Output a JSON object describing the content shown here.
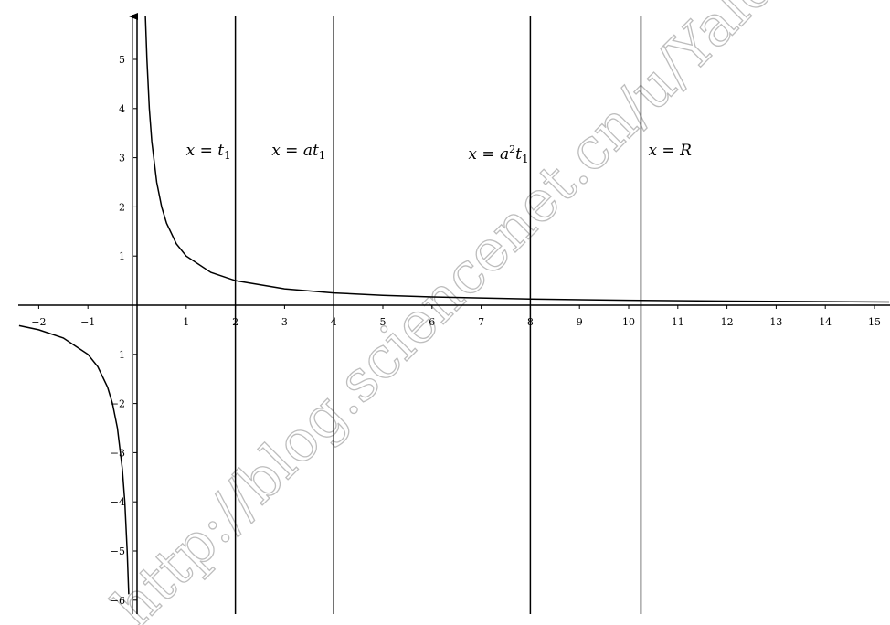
{
  "chart_data": {
    "type": "line",
    "title": "",
    "xlabel": "",
    "ylabel": "",
    "xlim": [
      -2.4,
      15.3
    ],
    "ylim": [
      -6.2,
      5.9
    ],
    "grid": false,
    "x_ticks": [
      -2,
      -1,
      1,
      2,
      3,
      4,
      5,
      6,
      7,
      8,
      9,
      10,
      11,
      12,
      13,
      14,
      15
    ],
    "y_ticks": [
      -6,
      -5,
      -4,
      -3,
      -2,
      -1,
      1,
      2,
      3,
      4,
      5
    ],
    "series": [
      {
        "function": "1/x",
        "color": "#000000",
        "x": [
          -2.4,
          -2,
          -1.5,
          -1,
          -0.8,
          -0.6,
          -0.5,
          -0.4,
          -0.3,
          -0.25,
          -0.2,
          -0.17,
          0.17,
          0.2,
          0.25,
          0.3,
          0.4,
          0.5,
          0.6,
          0.8,
          1,
          1.5,
          2,
          3,
          4,
          5,
          6,
          8,
          10,
          12,
          15.3
        ],
        "y": [
          -0.417,
          -0.5,
          -0.667,
          -1,
          -1.25,
          -1.667,
          -2,
          -2.5,
          -3.333,
          -4,
          -5,
          -5.88,
          5.88,
          5,
          4,
          3.333,
          2.5,
          2,
          1.667,
          1.25,
          1,
          0.667,
          0.5,
          0.333,
          0.25,
          0.2,
          0.167,
          0.125,
          0.1,
          0.083,
          0.065
        ]
      }
    ],
    "vertical_lines": [
      {
        "x": 2,
        "label": "x = t",
        "label_sub": "1",
        "label_sup": ""
      },
      {
        "x": 4,
        "label": "x = at",
        "label_sub": "1",
        "label_sup": ""
      },
      {
        "x": 8,
        "label": "x = a",
        "label_sub": "1",
        "label_sup": "2",
        "label_tail": "t"
      },
      {
        "x": 10.25,
        "label": "x = R",
        "label_sub": "",
        "label_sup": ""
      }
    ]
  },
  "watermark": {
    "text": "http://blog.sciencenet.cn/u/Yaleking",
    "color": "#bdbdbd"
  }
}
